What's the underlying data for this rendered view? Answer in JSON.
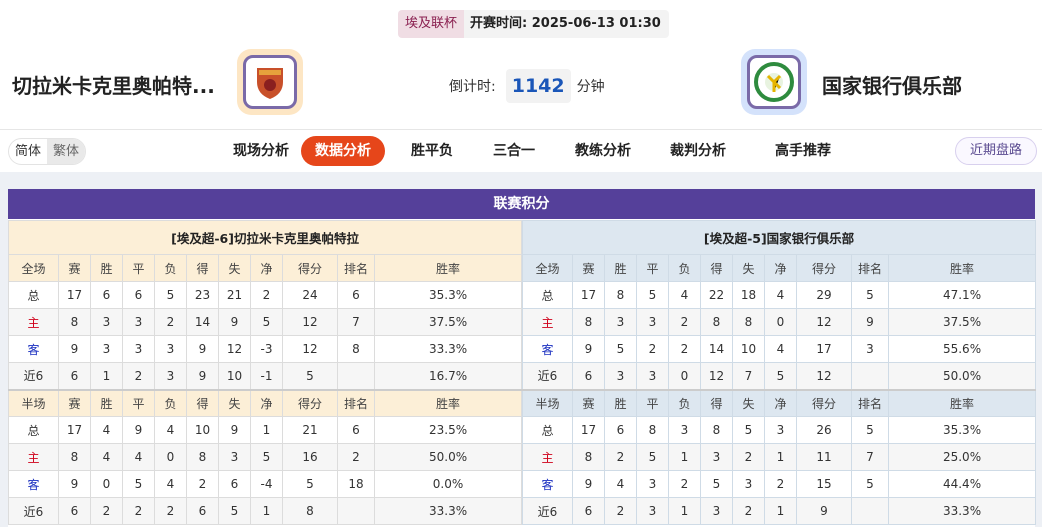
{
  "match": {
    "league": "埃及联杯",
    "kickoff_label": "开赛时间: 2025-06-13 01:30",
    "home": "切拉米卡克里奥帕特...",
    "away": "国家银行俱乐部",
    "countdown_label": "倒计时:",
    "countdown_value": "1142",
    "countdown_unit": "分钟"
  },
  "lang": {
    "simplified": "简体",
    "traditional": "繁体"
  },
  "nav": [
    "现场分析",
    "数据分析",
    "胜平负",
    "三合一",
    "教练分析",
    "裁判分析",
    "高手推荐"
  ],
  "nav_active": 1,
  "recent_button": "近期盘路",
  "section_title": "联赛积分",
  "colors": {
    "accent": "#e6461a",
    "section": "#55409a",
    "home_label": "#d0021b",
    "away_label": "#1a2fc0"
  },
  "tables": [
    {
      "title": "[埃及超-6]切拉米卡克里奥帕特拉",
      "full_header": [
        "全场",
        "赛",
        "胜",
        "平",
        "负",
        "得",
        "失",
        "净",
        "得分",
        "排名",
        "胜率"
      ],
      "full": [
        [
          "总",
          "17",
          "6",
          "6",
          "5",
          "23",
          "21",
          "2",
          "24",
          "6",
          "35.3%"
        ],
        [
          "主",
          "8",
          "3",
          "3",
          "2",
          "14",
          "9",
          "5",
          "12",
          "7",
          "37.5%"
        ],
        [
          "客",
          "9",
          "3",
          "3",
          "3",
          "9",
          "12",
          "-3",
          "12",
          "8",
          "33.3%"
        ],
        [
          "近6",
          "6",
          "1",
          "2",
          "3",
          "9",
          "10",
          "-1",
          "5",
          "",
          "16.7%"
        ]
      ],
      "half_header": [
        "半场",
        "赛",
        "胜",
        "平",
        "负",
        "得",
        "失",
        "净",
        "得分",
        "排名",
        "胜率"
      ],
      "half": [
        [
          "总",
          "17",
          "4",
          "9",
          "4",
          "10",
          "9",
          "1",
          "21",
          "6",
          "23.5%"
        ],
        [
          "主",
          "8",
          "4",
          "4",
          "0",
          "8",
          "3",
          "5",
          "16",
          "2",
          "50.0%"
        ],
        [
          "客",
          "9",
          "0",
          "5",
          "4",
          "2",
          "6",
          "-4",
          "5",
          "18",
          "0.0%"
        ],
        [
          "近6",
          "6",
          "2",
          "2",
          "2",
          "6",
          "5",
          "1",
          "8",
          "",
          "33.3%"
        ]
      ]
    },
    {
      "title": "[埃及超-5]国家银行俱乐部",
      "full_header": [
        "全场",
        "赛",
        "胜",
        "平",
        "负",
        "得",
        "失",
        "净",
        "得分",
        "排名",
        "胜率"
      ],
      "full": [
        [
          "总",
          "17",
          "8",
          "5",
          "4",
          "22",
          "18",
          "4",
          "29",
          "5",
          "47.1%"
        ],
        [
          "主",
          "8",
          "3",
          "3",
          "2",
          "8",
          "8",
          "0",
          "12",
          "9",
          "37.5%"
        ],
        [
          "客",
          "9",
          "5",
          "2",
          "2",
          "14",
          "10",
          "4",
          "17",
          "3",
          "55.6%"
        ],
        [
          "近6",
          "6",
          "3",
          "3",
          "0",
          "12",
          "7",
          "5",
          "12",
          "",
          "50.0%"
        ]
      ],
      "half_header": [
        "半场",
        "赛",
        "胜",
        "平",
        "负",
        "得",
        "失",
        "净",
        "得分",
        "排名",
        "胜率"
      ],
      "half": [
        [
          "总",
          "17",
          "6",
          "8",
          "3",
          "8",
          "5",
          "3",
          "26",
          "5",
          "35.3%"
        ],
        [
          "主",
          "8",
          "2",
          "5",
          "1",
          "3",
          "2",
          "1",
          "11",
          "7",
          "25.0%"
        ],
        [
          "客",
          "9",
          "4",
          "3",
          "2",
          "5",
          "3",
          "2",
          "15",
          "5",
          "44.4%"
        ],
        [
          "近6",
          "6",
          "2",
          "3",
          "1",
          "3",
          "2",
          "1",
          "9",
          "",
          "33.3%"
        ]
      ]
    }
  ]
}
